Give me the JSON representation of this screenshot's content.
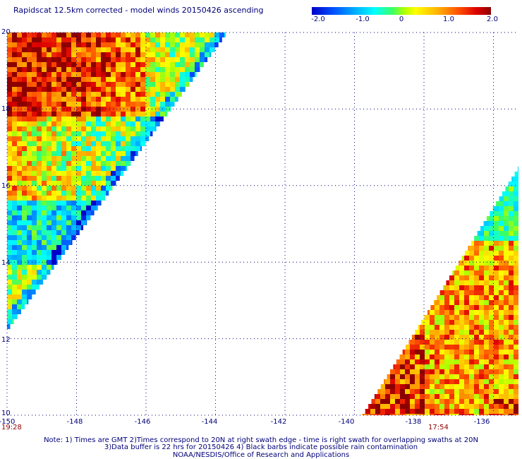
{
  "title": "Rapidscat 12.5km corrected - model winds 20150426 ascending",
  "colorbar": {
    "labels": [
      "-2.0",
      "-1.0",
      "0",
      "1.0",
      "2.0"
    ],
    "range": [
      -2.0,
      2.0
    ],
    "colors": [
      "#0000c8",
      "#00b4ff",
      "#00ffff",
      "#b4ff00",
      "#ffff00",
      "#ffb400",
      "#ff5000",
      "#dc0000",
      "#8c0000"
    ]
  },
  "axes": {
    "lat_labels": [
      "20",
      "18",
      "16",
      "14",
      "12",
      "10"
    ],
    "lon_labels": [
      "-150",
      "-148",
      "-146",
      "-144",
      "-142",
      "-140",
      "-138",
      "-136"
    ],
    "lat_range": [
      10,
      20
    ],
    "lon_range": [
      -150,
      -135.3
    ],
    "grid": "dotted"
  },
  "swath_times": {
    "left": "19:28",
    "right": "17:54"
  },
  "notes": [
    "Note: 1) Times are GMT 2)Times correspond to 20N at right swath edge - time is right swath for overlapping swaths at 20N",
    "3)Data buffer is 22 hrs for 20150426 4) Black barbs indicate possible rain contamination",
    "NOAA/NESDIS/Office of Research and Applications"
  ]
}
